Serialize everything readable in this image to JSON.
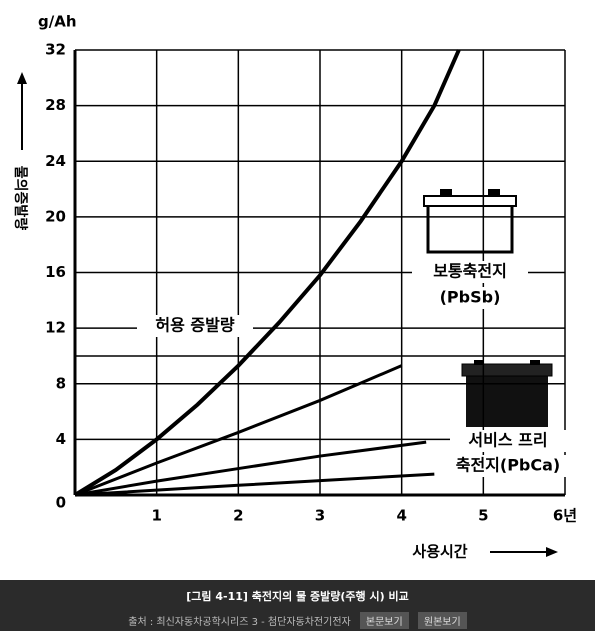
{
  "chart_data": {
    "type": "line",
    "y_label": "g/Ah",
    "y_axis_title": "물의증발량",
    "x_axis_title": "사용시간",
    "xlim": [
      0,
      6
    ],
    "xticks": [
      1,
      2,
      3,
      4,
      5,
      {
        "value": 6,
        "label": "6년"
      }
    ],
    "ylim": [
      0,
      32
    ],
    "yticks": [
      0,
      4,
      8,
      12,
      16,
      20,
      24,
      28,
      32
    ],
    "grid": true,
    "threshold": 10,
    "series": [
      {
        "color": "#000000",
        "x": [
          0,
          0.5,
          1,
          1.5,
          2,
          2.5,
          3,
          3.5,
          4,
          4.4,
          4.7
        ],
        "values": [
          0,
          1.8,
          4,
          6.5,
          9.3,
          12.4,
          15.8,
          19.7,
          24,
          28,
          32
        ]
      },
      {
        "color": "#000000",
        "x": [
          0,
          1,
          2,
          3,
          4
        ],
        "values": [
          0,
          2.3,
          4.5,
          6.8,
          9.3
        ]
      },
      {
        "color": "#000000",
        "x": [
          0,
          1,
          2,
          3,
          4.3
        ],
        "values": [
          0,
          1,
          1.9,
          2.8,
          3.8
        ]
      },
      {
        "color": "#000000",
        "x": [
          0,
          2,
          4.4
        ],
        "values": [
          0,
          0.7,
          1.5
        ]
      }
    ],
    "annotations": [
      "허용 증발량",
      "보통축전지",
      "(PbSb)",
      "서비스 프리",
      "축전지(PbCa)"
    ]
  },
  "footer": {
    "caption": "[그림 4-11] 축전지의 물 증발량(주행 시) 비교",
    "source": "출처 : 최신자동차공학시리즈 3 - 첨단자동차전기전자",
    "buttons": [
      "본문보기",
      "원본보기"
    ]
  }
}
